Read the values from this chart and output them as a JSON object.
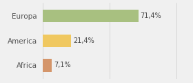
{
  "categories": [
    "Europa",
    "America",
    "Africa"
  ],
  "values": [
    71.4,
    21.4,
    7.1
  ],
  "labels": [
    "71,4%",
    "21,4%",
    "7,1%"
  ],
  "bar_colors": [
    "#a8c080",
    "#f0c860",
    "#d4956a"
  ],
  "background_color": "#f0f0f0",
  "xlim": [
    0,
    105
  ],
  "bar_height": 0.52,
  "label_fontsize": 7.0,
  "category_fontsize": 7.5
}
